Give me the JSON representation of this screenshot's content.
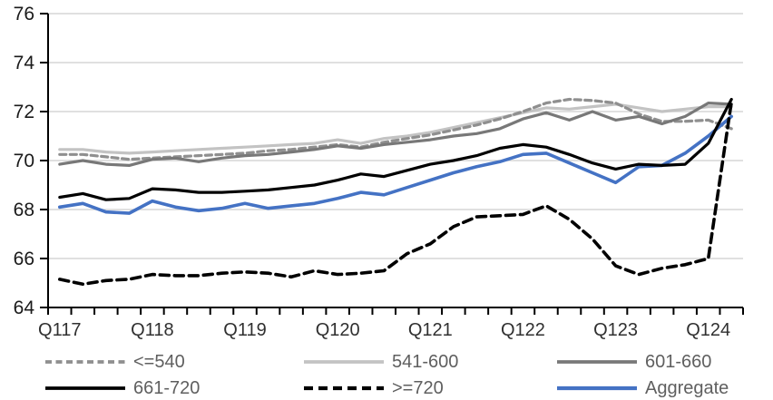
{
  "chart_data": {
    "type": "line",
    "title": "",
    "xlabel": "",
    "ylabel": "",
    "ylim": [
      64,
      76
    ],
    "y_ticks": [
      64,
      66,
      68,
      70,
      72,
      74,
      76
    ],
    "grid": true,
    "legend_position": "bottom",
    "points_per_series": 30,
    "x_axis_note": "quarterly categories from Q1 2017 to Q2 2024, labeled each Q1",
    "x_labels": [
      "Q117",
      "Q118",
      "Q119",
      "Q120",
      "Q121",
      "Q122",
      "Q123",
      "Q124"
    ],
    "x_label_indices": [
      0,
      4,
      8,
      12,
      16,
      20,
      24,
      28
    ],
    "colors": {
      "grid": "#d6d6d6",
      "axis": "#000000",
      "axis_text": "#1a1a1a",
      "legend_text": "#5f5f5f",
      "accent_blue": "#4472c4"
    },
    "series": [
      {
        "name": "<=540",
        "color": "#8f8f8f",
        "dash": "7 4.5",
        "width": 3.2,
        "values": [
          70.25,
          70.25,
          70.15,
          70.05,
          70.1,
          70.15,
          70.2,
          70.25,
          70.3,
          70.4,
          70.45,
          70.55,
          70.65,
          70.55,
          70.75,
          70.9,
          71.05,
          71.25,
          71.45,
          71.7,
          72.0,
          72.35,
          72.5,
          72.45,
          72.35,
          71.9,
          71.6,
          71.6,
          71.65,
          71.3
        ]
      },
      {
        "name": "541-600",
        "color": "#c3c3c3",
        "dash": null,
        "width": 3.2,
        "values": [
          70.45,
          70.45,
          70.35,
          70.3,
          70.35,
          70.4,
          70.45,
          70.5,
          70.55,
          70.6,
          70.65,
          70.7,
          70.85,
          70.7,
          70.9,
          71.0,
          71.15,
          71.35,
          71.55,
          71.75,
          71.95,
          72.15,
          72.1,
          72.2,
          72.3,
          72.15,
          72.0,
          72.1,
          72.2,
          72.2
        ]
      },
      {
        "name": "601-660",
        "color": "#787878",
        "dash": null,
        "width": 3.2,
        "values": [
          69.85,
          70.0,
          69.85,
          69.8,
          70.05,
          70.1,
          69.95,
          70.1,
          70.2,
          70.25,
          70.35,
          70.45,
          70.6,
          70.5,
          70.65,
          70.75,
          70.85,
          71.0,
          71.1,
          71.3,
          71.7,
          71.95,
          71.65,
          72.0,
          71.65,
          71.8,
          71.5,
          71.8,
          72.35,
          72.3
        ]
      },
      {
        "name": "661-720",
        "color": "#000000",
        "dash": null,
        "width": 3.2,
        "values": [
          68.5,
          68.65,
          68.4,
          68.45,
          68.85,
          68.8,
          68.7,
          68.7,
          68.75,
          68.8,
          68.9,
          69.0,
          69.2,
          69.45,
          69.35,
          69.6,
          69.85,
          70.0,
          70.2,
          70.5,
          70.65,
          70.55,
          70.25,
          69.9,
          69.65,
          69.85,
          69.8,
          69.85,
          70.7,
          72.5
        ]
      },
      {
        "name": ">=720",
        "color": "#000000",
        "dash": "10 6",
        "width": 3.6,
        "values": [
          65.15,
          64.95,
          65.1,
          65.15,
          65.35,
          65.3,
          65.3,
          65.4,
          65.45,
          65.4,
          65.25,
          65.5,
          65.35,
          65.4,
          65.5,
          66.2,
          66.6,
          67.3,
          67.7,
          67.75,
          67.8,
          68.15,
          67.6,
          66.8,
          65.7,
          65.35,
          65.6,
          65.75,
          66.0,
          72.4
        ]
      },
      {
        "name": "Aggregate",
        "color": "#4472c4",
        "dash": null,
        "width": 3.6,
        "values": [
          68.1,
          68.25,
          67.9,
          67.85,
          68.35,
          68.1,
          67.95,
          68.05,
          68.25,
          68.05,
          68.15,
          68.25,
          68.45,
          68.7,
          68.6,
          68.9,
          69.2,
          69.5,
          69.75,
          69.95,
          70.25,
          70.3,
          69.9,
          69.5,
          69.1,
          69.75,
          69.8,
          70.3,
          71.0,
          71.8
        ]
      }
    ]
  }
}
